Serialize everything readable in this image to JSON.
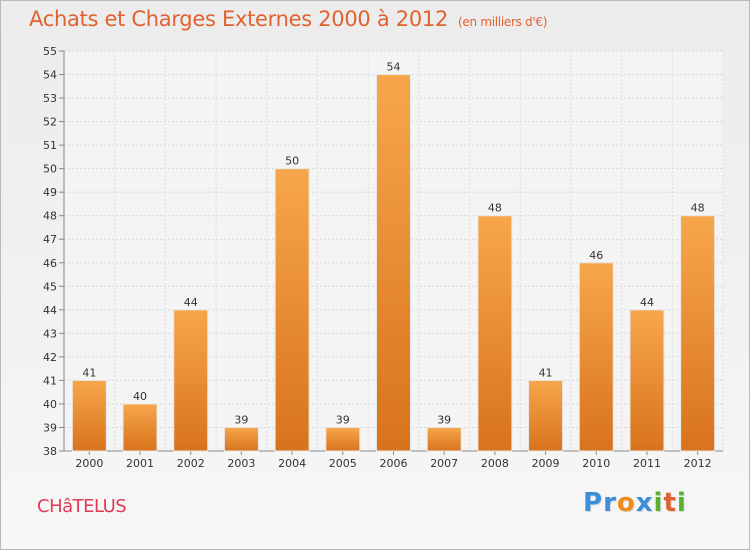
{
  "title": "Achats et Charges Externes 2000 à 2012",
  "subtitle": "(en milliers d'€)",
  "commune": "CHâTELUS",
  "brand": {
    "letters": [
      {
        "ch": "P",
        "color": "#3b8fd8"
      },
      {
        "ch": "r",
        "color": "#3b8fd8"
      },
      {
        "ch": "o",
        "color": "#f08a1c"
      },
      {
        "ch": "x",
        "color": "#3b8fd8"
      },
      {
        "ch": "i",
        "color": "#5bb02f"
      },
      {
        "ch": "t",
        "color": "#e0622f"
      },
      {
        "ch": "i",
        "color": "#5bb02f"
      }
    ]
  },
  "chart_data": {
    "type": "bar",
    "title": "Achats et Charges Externes 2000 à 2012",
    "subtitle": "(en milliers d'€)",
    "categories": [
      "2000",
      "2001",
      "2002",
      "2003",
      "2004",
      "2005",
      "2006",
      "2007",
      "2008",
      "2009",
      "2010",
      "2011",
      "2012"
    ],
    "values": [
      41,
      40,
      44,
      39,
      50,
      39,
      54,
      39,
      48,
      41,
      46,
      44,
      48
    ],
    "ylim": [
      38,
      55
    ],
    "ytick_step": 1,
    "grid": true,
    "bar_color": "#f29a3b"
  }
}
